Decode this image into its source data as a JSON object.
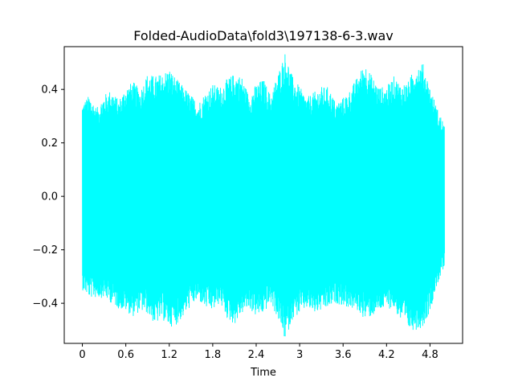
{
  "chart_data": {
    "type": "line",
    "title": "Folded-AudioData\\fold3\\197138-6-3.wav",
    "xlabel": "Time",
    "ylabel": "",
    "xlim": [
      -0.25,
      5.25
    ],
    "ylim": [
      -0.55,
      0.56
    ],
    "x_ticks": [
      0,
      0.6,
      1.2,
      1.8,
      2.4,
      3,
      3.6,
      4.2,
      4.8
    ],
    "x_tick_labels": [
      "0",
      "0.6",
      "1.2",
      "1.8",
      "2.4",
      "3",
      "3.6",
      "4.2",
      "4.8"
    ],
    "y_ticks": [
      -0.4,
      -0.2,
      0.0,
      0.2,
      0.4
    ],
    "y_tick_labels": [
      "−0.4",
      "−0.2",
      "0.0",
      "0.2",
      "0.4"
    ],
    "grid": false,
    "legend": "none",
    "series": [
      {
        "color": "#00ffff",
        "x_start": 0,
        "x_end": 5.0,
        "envelope_x": [
          0,
          0.1,
          0.2,
          0.3,
          0.4,
          0.5,
          0.6,
          0.7,
          0.8,
          0.9,
          1.0,
          1.1,
          1.2,
          1.3,
          1.4,
          1.5,
          1.6,
          1.7,
          1.8,
          1.9,
          2.0,
          2.1,
          2.2,
          2.3,
          2.4,
          2.5,
          2.6,
          2.7,
          2.8,
          2.9,
          3.0,
          3.1,
          3.2,
          3.3,
          3.4,
          3.5,
          3.6,
          3.7,
          3.8,
          3.9,
          4.0,
          4.1,
          4.2,
          4.3,
          4.4,
          4.5,
          4.6,
          4.7,
          4.8,
          4.9,
          5.0
        ],
        "envelope_max": [
          0.35,
          0.38,
          0.33,
          0.38,
          0.4,
          0.36,
          0.41,
          0.43,
          0.4,
          0.46,
          0.45,
          0.46,
          0.48,
          0.44,
          0.41,
          0.38,
          0.35,
          0.39,
          0.42,
          0.41,
          0.44,
          0.46,
          0.45,
          0.38,
          0.42,
          0.44,
          0.38,
          0.46,
          0.54,
          0.45,
          0.41,
          0.37,
          0.39,
          0.41,
          0.41,
          0.35,
          0.37,
          0.4,
          0.45,
          0.5,
          0.45,
          0.41,
          0.41,
          0.45,
          0.42,
          0.43,
          0.49,
          0.5,
          0.41,
          0.33,
          0.27
        ],
        "envelope_min": [
          -0.35,
          -0.38,
          -0.38,
          -0.38,
          -0.4,
          -0.42,
          -0.43,
          -0.45,
          -0.43,
          -0.44,
          -0.48,
          -0.46,
          -0.49,
          -0.48,
          -0.45,
          -0.41,
          -0.39,
          -0.42,
          -0.43,
          -0.4,
          -0.46,
          -0.48,
          -0.44,
          -0.42,
          -0.45,
          -0.44,
          -0.4,
          -0.46,
          -0.54,
          -0.46,
          -0.44,
          -0.42,
          -0.44,
          -0.43,
          -0.42,
          -0.4,
          -0.41,
          -0.42,
          -0.43,
          -0.46,
          -0.45,
          -0.43,
          -0.42,
          -0.42,
          -0.47,
          -0.5,
          -0.5,
          -0.49,
          -0.43,
          -0.33,
          -0.27
        ]
      }
    ]
  }
}
